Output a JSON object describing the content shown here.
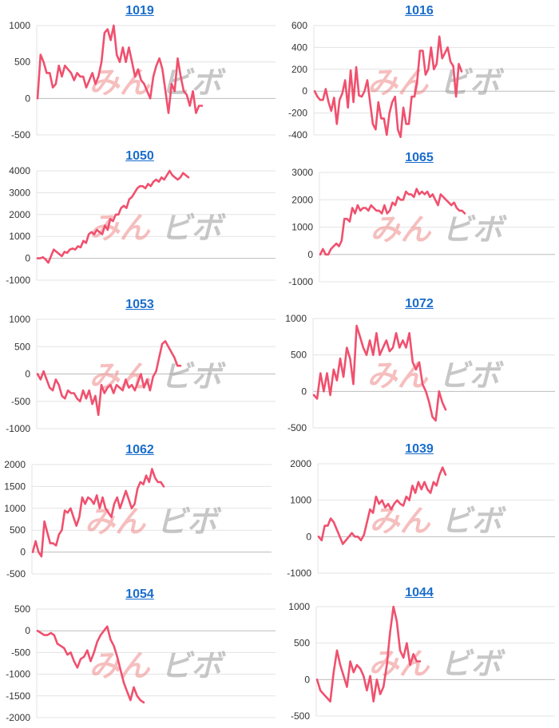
{
  "watermark": {
    "left": "みん",
    "right": "ビボ"
  },
  "colors": {
    "line": "#f0506e",
    "title": "#1a6dcc",
    "grid": "#e3e3e3",
    "zero": "#bdbdbd"
  },
  "chart_data": [
    {
      "type": "line",
      "title": "1019",
      "ylim": [
        -500,
        1000
      ],
      "yticks": [
        -500,
        0,
        500,
        1000
      ],
      "tick_labels": [
        "-500",
        "0",
        "500",
        "1000"
      ],
      "values": [
        0,
        600,
        500,
        350,
        350,
        150,
        200,
        450,
        300,
        450,
        400,
        350,
        250,
        350,
        300,
        300,
        150,
        250,
        350,
        200,
        300,
        500,
        900,
        950,
        800,
        1000,
        600,
        500,
        700,
        500,
        700,
        500,
        300,
        400,
        250,
        200,
        100,
        0,
        300,
        450,
        550,
        400,
        100,
        -200,
        200,
        100,
        550,
        300,
        100,
        50,
        -100,
        100,
        -200,
        -100,
        -100
      ]
    },
    {
      "type": "line",
      "title": "1016",
      "ylim": [
        -400,
        600
      ],
      "yticks": [
        -400,
        -200,
        0,
        200,
        400,
        600
      ],
      "tick_labels": [
        "-400",
        "-200",
        "0",
        "200",
        "400",
        "600"
      ],
      "values": [
        0,
        -50,
        -80,
        -80,
        20,
        -100,
        -180,
        -60,
        -300,
        -80,
        -20,
        100,
        -150,
        190,
        -100,
        220,
        -40,
        -50,
        0,
        100,
        -100,
        -300,
        -350,
        -100,
        -250,
        -250,
        -400,
        -200,
        -100,
        -50,
        -350,
        -420,
        -150,
        -300,
        -300,
        -50,
        -50,
        100,
        370,
        370,
        150,
        200,
        400,
        200,
        250,
        500,
        300,
        350,
        400,
        270,
        230,
        -50,
        250,
        180
      ]
    },
    {
      "type": "line",
      "title": "1050",
      "ylim": [
        -1000,
        4000
      ],
      "yticks": [
        -1000,
        0,
        1000,
        2000,
        3000,
        4000
      ],
      "tick_labels": [
        "-1000",
        "0",
        "1000",
        "2000",
        "3000",
        "4000"
      ],
      "values": [
        0,
        0,
        50,
        -50,
        -200,
        100,
        400,
        300,
        200,
        100,
        300,
        250,
        400,
        450,
        400,
        550,
        500,
        800,
        700,
        1100,
        1200,
        1100,
        1300,
        1200,
        1100,
        1500,
        1300,
        1800,
        1700,
        2000,
        2000,
        2300,
        2400,
        2300,
        2700,
        2800,
        3000,
        3200,
        3300,
        3300,
        3200,
        3400,
        3300,
        3500,
        3600,
        3500,
        3700,
        3600,
        3800,
        4000,
        3800,
        3700,
        3600,
        3700,
        3900,
        3800,
        3700
      ]
    },
    {
      "type": "line",
      "title": "1065",
      "ylim": [
        -1000,
        3000
      ],
      "yticks": [
        -1000,
        0,
        1000,
        2000,
        3000
      ],
      "tick_labels": [
        "-1000",
        "0",
        "1000",
        "2000",
        "3000"
      ],
      "values": [
        0,
        200,
        0,
        0,
        200,
        300,
        400,
        300,
        500,
        1300,
        1300,
        1200,
        1700,
        1500,
        1800,
        1600,
        1700,
        1700,
        1600,
        1800,
        1700,
        1600,
        1600,
        1500,
        1800,
        1500,
        1600,
        1900,
        1800,
        2100,
        2000,
        2000,
        2300,
        2200,
        2200,
        2100,
        2400,
        2200,
        2300,
        2200,
        2300,
        2100,
        2200,
        2000,
        1800,
        2200,
        2100,
        2000,
        1900,
        1800,
        1900,
        1700,
        1600,
        1600,
        1500
      ]
    },
    {
      "type": "line",
      "title": "1053",
      "ylim": [
        -1000,
        1000
      ],
      "yticks": [
        -1000,
        -500,
        0,
        500,
        1000
      ],
      "tick_labels": [
        "-1000",
        "-500",
        "0",
        "500",
        "1000"
      ],
      "values": [
        0,
        -100,
        50,
        -100,
        -250,
        -300,
        -100,
        -200,
        -400,
        -450,
        -300,
        -350,
        -350,
        -450,
        -500,
        -300,
        -450,
        -300,
        -550,
        -400,
        -750,
        -200,
        -350,
        -250,
        -200,
        -350,
        -200,
        -250,
        -300,
        -100,
        -250,
        -200,
        -300,
        -150,
        0,
        -250,
        -100,
        -300,
        -50,
        50,
        300,
        550,
        600,
        500,
        400,
        300,
        150,
        150
      ]
    },
    {
      "type": "line",
      "title": "1072",
      "ylim": [
        -500,
        1000
      ],
      "yticks": [
        -500,
        0,
        500,
        1000
      ],
      "tick_labels": [
        "-500",
        "0",
        "500",
        "1000"
      ],
      "values": [
        -50,
        -100,
        250,
        0,
        250,
        -50,
        300,
        150,
        450,
        200,
        600,
        450,
        100,
        900,
        750,
        600,
        500,
        700,
        500,
        800,
        500,
        600,
        700,
        550,
        600,
        800,
        600,
        700,
        600,
        800,
        400,
        300,
        400,
        100,
        0,
        -150,
        -350,
        -400,
        0,
        -150,
        -250
      ]
    },
    {
      "type": "line",
      "title": "1062",
      "ylim": [
        -500,
        2000
      ],
      "yticks": [
        -500,
        0,
        500,
        1000,
        1500,
        2000
      ],
      "tick_labels": [
        "-500",
        "0",
        "500",
        "1000",
        "1500",
        "2000"
      ],
      "values": [
        0,
        250,
        0,
        -100,
        700,
        450,
        200,
        200,
        150,
        400,
        500,
        950,
        900,
        1000,
        800,
        600,
        800,
        1250,
        1100,
        1250,
        1200,
        1100,
        1300,
        1000,
        1250,
        1000,
        900,
        800,
        1100,
        1250,
        1000,
        1200,
        1400,
        1200,
        1000,
        1100,
        1450,
        1600,
        1550,
        1750,
        1600,
        1900,
        1700,
        1600,
        1600,
        1500
      ]
    },
    {
      "type": "line",
      "title": "1039",
      "ylim": [
        -1000,
        2000
      ],
      "yticks": [
        -1000,
        0,
        1000,
        2000
      ],
      "tick_labels": [
        "-1000",
        "0",
        "1000",
        "2000"
      ],
      "values": [
        0,
        -100,
        300,
        300,
        500,
        400,
        200,
        0,
        -200,
        -100,
        0,
        100,
        0,
        0,
        -100,
        50,
        400,
        750,
        650,
        1100,
        900,
        1000,
        800,
        900,
        750,
        900,
        1000,
        900,
        850,
        1100,
        1000,
        1400,
        1200,
        1500,
        1300,
        1500,
        1300,
        1200,
        1500,
        1400,
        1700,
        1900,
        1700
      ]
    },
    {
      "type": "line",
      "title": "1054",
      "ylim": [
        -2000,
        500
      ],
      "yticks": [
        -2000,
        -1500,
        -1000,
        -500,
        0,
        500
      ],
      "tick_labels": [
        "-2000",
        "-1500",
        "-1000",
        "-500",
        "0",
        "500"
      ],
      "values": [
        0,
        -50,
        -100,
        -100,
        -50,
        -100,
        -300,
        -350,
        -400,
        -550,
        -500,
        -700,
        -850,
        -650,
        -600,
        -450,
        -700,
        -500,
        -250,
        -100,
        0,
        100,
        -200,
        -350,
        -600,
        -900,
        -1200,
        -1400,
        -1600,
        -1300,
        -1500,
        -1600,
        -1650
      ]
    },
    {
      "type": "line",
      "title": "1044",
      "ylim": [
        -500,
        1000
      ],
      "yticks": [
        -500,
        0,
        500,
        1000
      ],
      "tick_labels": [
        "-500",
        "0",
        "500",
        "1000"
      ],
      "values": [
        0,
        -150,
        -200,
        -250,
        -300,
        100,
        400,
        200,
        50,
        -100,
        250,
        100,
        200,
        150,
        50,
        -150,
        50,
        -300,
        0,
        -200,
        -100,
        200,
        650,
        1000,
        800,
        400,
        300,
        500,
        200,
        350,
        250,
        250
      ]
    }
  ]
}
